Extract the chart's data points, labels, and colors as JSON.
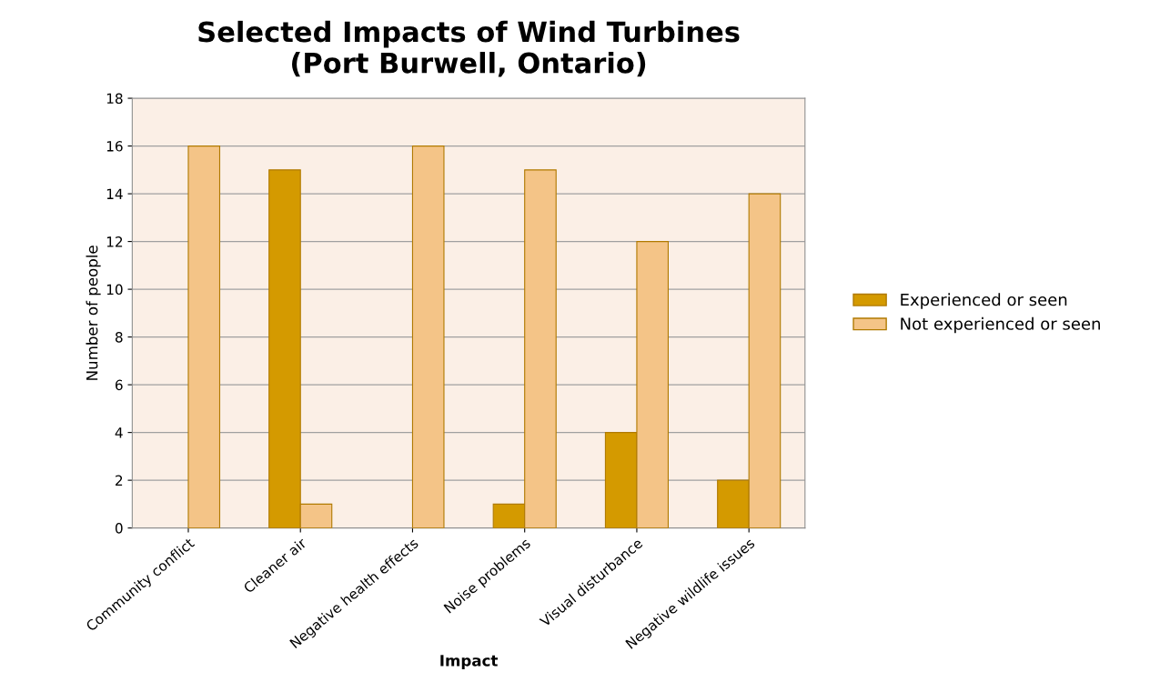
{
  "chart_data": {
    "type": "bar",
    "title": "Selected Impacts of Wind Turbines\n(Port Burwell, Ontario)",
    "xlabel": "Impact",
    "ylabel": "Number of people",
    "categories": [
      "Community conflict",
      "Cleaner air",
      "Negative health effects",
      "Noise problems",
      "Visual disturbance",
      "Negative wildlife issues"
    ],
    "series": [
      {
        "name": "Experienced or seen",
        "color": "#d49a00",
        "values": [
          0,
          15,
          0,
          1,
          4,
          2
        ]
      },
      {
        "name": "Not experienced or seen",
        "color": "#f4c487",
        "values": [
          16,
          1,
          16,
          15,
          12,
          14
        ]
      }
    ],
    "ylim": [
      0,
      18
    ],
    "yticks": [
      0,
      2,
      4,
      6,
      8,
      10,
      12,
      14,
      16,
      18
    ],
    "grid": "y",
    "legend": "right"
  }
}
